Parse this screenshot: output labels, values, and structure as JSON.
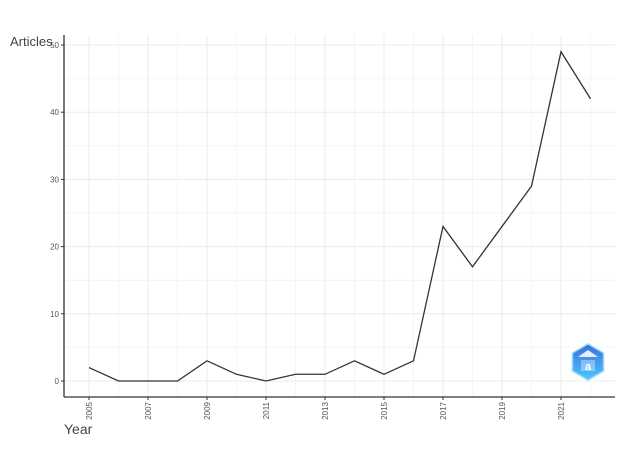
{
  "chart_data": {
    "type": "line",
    "xlabel": "Year",
    "ylabel": "Articles",
    "x": [
      2005,
      2006,
      2007,
      2008,
      2009,
      2010,
      2011,
      2012,
      2013,
      2014,
      2015,
      2016,
      2017,
      2018,
      2019,
      2020,
      2021,
      2022
    ],
    "values": [
      2,
      0,
      0,
      0,
      3,
      1,
      0,
      1,
      1,
      3,
      1,
      3,
      23,
      17,
      23,
      29,
      49,
      42
    ],
    "x_ticks": [
      "2005",
      "2007",
      "2009",
      "2011",
      "2013",
      "2015",
      "2017",
      "2019",
      "2021"
    ],
    "y_ticks": [
      "0",
      "10",
      "20",
      "30",
      "40",
      "50"
    ],
    "xlim": [
      2005,
      2022
    ],
    "ylim": [
      0,
      50
    ],
    "grid": true,
    "line_color": "#333333",
    "logo": "hexagon-logo"
  }
}
